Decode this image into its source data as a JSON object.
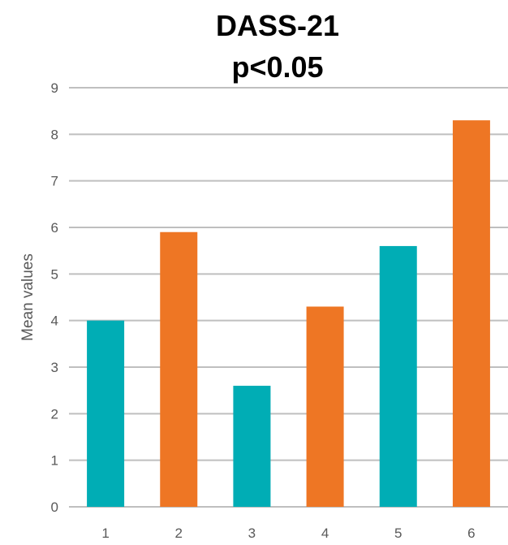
{
  "chart_data": {
    "type": "bar",
    "title": "DASS-21",
    "subtitle": "p<0.05",
    "xlabel": "",
    "ylabel": "Mean values",
    "categories": [
      "1",
      "2",
      "3",
      "4",
      "5",
      "6"
    ],
    "values": [
      4.0,
      5.9,
      2.6,
      4.3,
      5.6,
      8.3
    ],
    "bar_colors": [
      "#00adb5",
      "#ee7624",
      "#00adb5",
      "#ee7624",
      "#00adb5",
      "#ee7624"
    ],
    "ylim": [
      0,
      9
    ],
    "yticks": [
      "0",
      "1",
      "2",
      "3",
      "4",
      "5",
      "6",
      "7",
      "8",
      "9"
    ],
    "grid": true,
    "gridline_color": "#bfbfbf"
  }
}
